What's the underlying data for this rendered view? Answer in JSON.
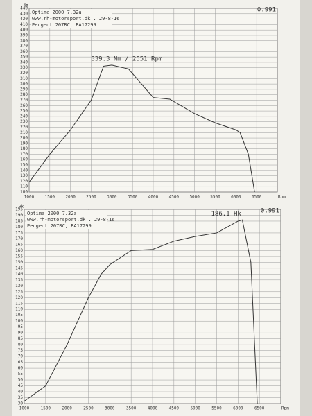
{
  "chart_data": [
    {
      "type": "line",
      "y_label": "Nm",
      "x_label": "Rpm",
      "header": [
        "Optima 2000 7.32a",
        "www.rh-motorsport.dk . 29-8-16",
        "Peugeot 207RC, BA17299"
      ],
      "corner_value": "0.991",
      "annotation": "339.3 Nm / 2551 Rpm",
      "x": [
        1000,
        1500,
        2000,
        2500,
        2800,
        3000,
        3400,
        4000,
        4400,
        5000,
        5500,
        6000,
        6100,
        6300,
        6450
      ],
      "values": [
        118,
        170,
        215,
        270,
        333,
        335,
        328,
        275,
        272,
        245,
        228,
        215,
        210,
        170,
        100
      ],
      "color": "#333333",
      "xlim": [
        1000,
        7000
      ],
      "xticks": [
        1000,
        1500,
        2000,
        2500,
        3000,
        3500,
        4000,
        4500,
        5000,
        5500,
        6000,
        6500
      ],
      "ylim": [
        100,
        440
      ],
      "yticks": [
        100,
        110,
        120,
        130,
        140,
        150,
        160,
        170,
        180,
        190,
        200,
        210,
        220,
        230,
        240,
        250,
        260,
        270,
        280,
        290,
        300,
        310,
        320,
        330,
        340,
        350,
        360,
        370,
        380,
        390,
        400,
        410,
        420,
        430,
        440
      ],
      "grid": true
    },
    {
      "type": "line",
      "y_label": "Hk",
      "x_label": "Rpm",
      "header": [
        "Optima 2000 7.32a",
        "www.rh-motorsport.dk . 29-8-16",
        "Peugeot 207RC, BA17299"
      ],
      "corner_value": "0.991",
      "annotation": "186.1 Hk",
      "x": [
        1000,
        1500,
        2000,
        2500,
        2800,
        3000,
        3500,
        4000,
        4500,
        5000,
        5500,
        6000,
        6100,
        6300,
        6450
      ],
      "values": [
        32,
        45,
        80,
        120,
        140,
        148,
        160,
        161,
        168,
        172,
        175,
        185,
        186,
        150,
        30
      ],
      "color": "#333333",
      "xlim": [
        1000,
        7000
      ],
      "xticks": [
        1000,
        1500,
        2000,
        2500,
        3000,
        3500,
        4000,
        4500,
        5000,
        5500,
        6000,
        6500
      ],
      "ylim": [
        30,
        195
      ],
      "yticks": [
        30,
        35,
        40,
        45,
        50,
        55,
        60,
        65,
        70,
        75,
        80,
        85,
        90,
        95,
        100,
        105,
        110,
        115,
        120,
        125,
        130,
        135,
        140,
        145,
        150,
        155,
        160,
        165,
        170,
        175,
        180,
        185,
        190,
        195
      ],
      "grid": true
    }
  ]
}
